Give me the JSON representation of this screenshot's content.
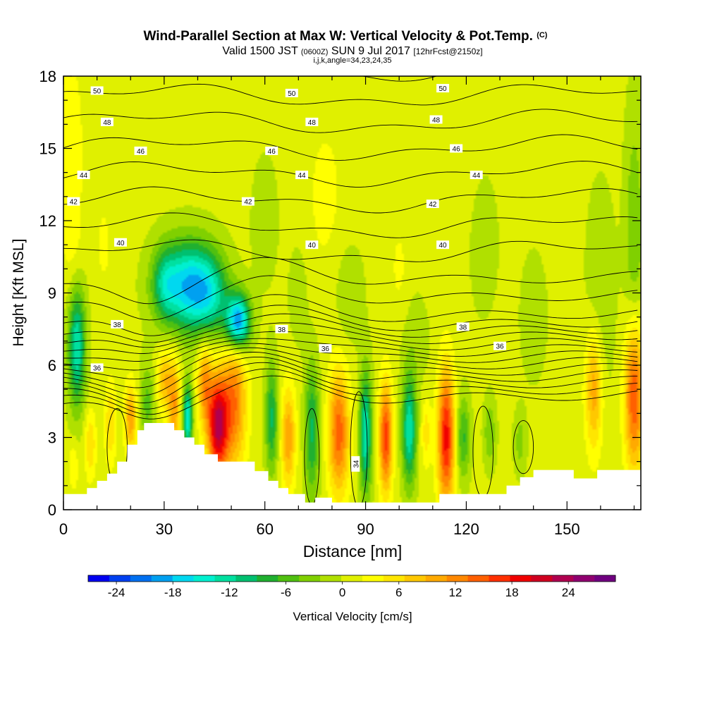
{
  "chart_data": {
    "type": "heatmap",
    "title": "Wind-Parallel Section at Max W: Vertical Velocity & Pot.Temp.",
    "title_mark": "(C)",
    "subtitle_parts": [
      "Valid 1500 JST",
      "(0600Z)",
      "SUN 9 Jul 2017",
      "[12hrFcst@2150z]"
    ],
    "subtitle2": "i,j,k,angle=34,23,24,35",
    "xlabel": "Distance [nm]",
    "ylabel": "Height [Kft MSL]",
    "xlim": [
      0,
      172
    ],
    "ylim": [
      0,
      18
    ],
    "x_ticks": [
      0,
      30,
      60,
      90,
      120,
      150
    ],
    "y_ticks": [
      0,
      3,
      6,
      9,
      12,
      15,
      18
    ],
    "grid": false,
    "colorbar": {
      "label": "Vertical Velocity [cm/s]",
      "ticks": [
        "-24",
        "-18",
        "-12",
        "-6",
        "0",
        "6",
        "12",
        "18",
        "24"
      ],
      "range": [
        -27,
        29
      ],
      "colors": [
        "#0000f0",
        "#0040f0",
        "#0070f0",
        "#00a0f0",
        "#00d8f0",
        "#00f0d0",
        "#00e0a0",
        "#00c070",
        "#20b030",
        "#50c010",
        "#80d000",
        "#b0e000",
        "#e0f000",
        "#ffff00",
        "#ffe600",
        "#ffc800",
        "#ffaa00",
        "#ff8800",
        "#ff6000",
        "#ff3000",
        "#f00000",
        "#d00020",
        "#b00050",
        "#900070",
        "#700080"
      ]
    },
    "pot_temp_labels": [
      {
        "text": "50",
        "x": 10,
        "y": 17.4
      },
      {
        "text": "50",
        "x": 68,
        "y": 17.3
      },
      {
        "text": "50",
        "x": 113,
        "y": 17.5
      },
      {
        "text": "48",
        "x": 13,
        "y": 16.1
      },
      {
        "text": "48",
        "x": 74,
        "y": 16.1
      },
      {
        "text": "48",
        "x": 111,
        "y": 16.2
      },
      {
        "text": "46",
        "x": 23,
        "y": 14.9
      },
      {
        "text": "46",
        "x": 62,
        "y": 14.9
      },
      {
        "text": "46",
        "x": 117,
        "y": 15.0
      },
      {
        "text": "44",
        "x": 6,
        "y": 13.9
      },
      {
        "text": "44",
        "x": 71,
        "y": 13.9
      },
      {
        "text": "44",
        "x": 123,
        "y": 13.9
      },
      {
        "text": "42",
        "x": 3,
        "y": 12.8
      },
      {
        "text": "42",
        "x": 55,
        "y": 12.8
      },
      {
        "text": "42",
        "x": 110,
        "y": 12.7
      },
      {
        "text": "40",
        "x": 17,
        "y": 11.1
      },
      {
        "text": "40",
        "x": 74,
        "y": 11.0
      },
      {
        "text": "40",
        "x": 113,
        "y": 11.0
      },
      {
        "text": "38",
        "x": 16,
        "y": 7.7
      },
      {
        "text": "38",
        "x": 65,
        "y": 7.5
      },
      {
        "text": "38",
        "x": 119,
        "y": 7.6
      },
      {
        "text": "36",
        "x": 10,
        "y": 5.9
      },
      {
        "text": "36",
        "x": 78,
        "y": 6.7
      },
      {
        "text": "36",
        "x": 130,
        "y": 6.8
      },
      {
        "text": "34",
        "x": 87,
        "y": 1.9
      }
    ],
    "terrain": [
      [
        0,
        0.65
      ],
      [
        7,
        0.65
      ],
      [
        7,
        0.9
      ],
      [
        10,
        0.9
      ],
      [
        10,
        1.2
      ],
      [
        13,
        1.2
      ],
      [
        13,
        1.5
      ],
      [
        16,
        1.5
      ],
      [
        16,
        2.0
      ],
      [
        19,
        2.0
      ],
      [
        19,
        2.7
      ],
      [
        22,
        2.7
      ],
      [
        22,
        3.3
      ],
      [
        24,
        3.3
      ],
      [
        24,
        3.6
      ],
      [
        33,
        3.6
      ],
      [
        33,
        3.3
      ],
      [
        36,
        3.3
      ],
      [
        36,
        3.0
      ],
      [
        39,
        3.0
      ],
      [
        39,
        2.7
      ],
      [
        42,
        2.7
      ],
      [
        42,
        2.3
      ],
      [
        46,
        2.3
      ],
      [
        46,
        2.0
      ],
      [
        57,
        2.0
      ],
      [
        57,
        1.6
      ],
      [
        61,
        1.6
      ],
      [
        61,
        1.2
      ],
      [
        64,
        1.2
      ],
      [
        64,
        0.9
      ],
      [
        67,
        0.9
      ],
      [
        67,
        0.65
      ],
      [
        72,
        0.65
      ],
      [
        72,
        0.3
      ],
      [
        75,
        0.3
      ],
      [
        75,
        0.5
      ],
      [
        80,
        0.5
      ],
      [
        80,
        0.3
      ],
      [
        112,
        0.3
      ],
      [
        112,
        0.65
      ],
      [
        132,
        0.65
      ],
      [
        132,
        1.0
      ],
      [
        136,
        1.0
      ],
      [
        136,
        1.35
      ],
      [
        140,
        1.35
      ],
      [
        140,
        1.65
      ],
      [
        152,
        1.65
      ],
      [
        152,
        1.3
      ],
      [
        159,
        1.3
      ],
      [
        159,
        1.65
      ],
      [
        172,
        1.65
      ]
    ],
    "w_features": [
      {
        "x": 4,
        "y": 6.8,
        "sx": 1.8,
        "sy": 1.8,
        "a": -14
      },
      {
        "x": 37,
        "y": 9.3,
        "sx": 6,
        "sy": 1.3,
        "a": -18
      },
      {
        "x": 44,
        "y": 8.8,
        "sx": 4,
        "sy": 1.2,
        "a": -8
      },
      {
        "x": 52,
        "y": 7.8,
        "sx": 2.5,
        "sy": 0.8,
        "a": -22
      },
      {
        "x": 30,
        "y": 9.4,
        "sx": 2.5,
        "sy": 1.0,
        "a": -6
      },
      {
        "x": 46,
        "y": 3.5,
        "sx": 2.2,
        "sy": 1.5,
        "a": 22
      },
      {
        "x": 51,
        "y": 4.5,
        "sx": 2.5,
        "sy": 2.0,
        "a": 12
      },
      {
        "x": 42,
        "y": 5.3,
        "sx": 1.5,
        "sy": 1.2,
        "a": 10
      },
      {
        "x": 37,
        "y": 3.8,
        "sx": 1.0,
        "sy": 1.0,
        "a": -16
      },
      {
        "x": 33,
        "y": 4.3,
        "sx": 1.3,
        "sy": 1.4,
        "a": 10
      },
      {
        "x": 30,
        "y": 5.4,
        "sx": 1.6,
        "sy": 0.9,
        "a": 8
      },
      {
        "x": 25,
        "y": 4.4,
        "sx": 1.6,
        "sy": 1.2,
        "a": -6
      },
      {
        "x": 20,
        "y": 3.8,
        "sx": 1.3,
        "sy": 1.0,
        "a": 10
      },
      {
        "x": 14,
        "y": 3.6,
        "sx": 1.2,
        "sy": 1.2,
        "a": 6
      },
      {
        "x": 8,
        "y": 2.7,
        "sx": 1.2,
        "sy": 1.0,
        "a": 6
      },
      {
        "x": 3,
        "y": 1.8,
        "sx": 1.0,
        "sy": 0.7,
        "a": 4
      },
      {
        "x": 62,
        "y": 3.8,
        "sx": 1.3,
        "sy": 1.6,
        "a": -10
      },
      {
        "x": 67,
        "y": 3.0,
        "sx": 1.5,
        "sy": 1.5,
        "a": 10
      },
      {
        "x": 74,
        "y": 3.3,
        "sx": 1.5,
        "sy": 2.0,
        "a": -10
      },
      {
        "x": 82,
        "y": 3.2,
        "sx": 2.2,
        "sy": 1.8,
        "a": 14
      },
      {
        "x": 90,
        "y": 3.2,
        "sx": 1.3,
        "sy": 1.8,
        "a": -14
      },
      {
        "x": 96,
        "y": 3.0,
        "sx": 1.4,
        "sy": 1.6,
        "a": 16
      },
      {
        "x": 103,
        "y": 3.3,
        "sx": 1.5,
        "sy": 1.6,
        "a": -14
      },
      {
        "x": 108,
        "y": 3.2,
        "sx": 1.0,
        "sy": 1.0,
        "a": 5
      },
      {
        "x": 114,
        "y": 3.0,
        "sx": 1.8,
        "sy": 2.0,
        "a": 18
      },
      {
        "x": 119,
        "y": 3.0,
        "sx": 1.5,
        "sy": 1.2,
        "a": -8
      },
      {
        "x": 127,
        "y": 3.2,
        "sx": 1.3,
        "sy": 1.0,
        "a": -5
      },
      {
        "x": 136,
        "y": 2.8,
        "sx": 1.3,
        "sy": 0.9,
        "a": -4
      },
      {
        "x": 158,
        "y": 5.0,
        "sx": 1.8,
        "sy": 1.8,
        "a": 10
      },
      {
        "x": 170,
        "y": 4.8,
        "sx": 2.0,
        "sy": 2.2,
        "a": 16
      },
      {
        "x": 2,
        "y": 15,
        "sx": 3,
        "sy": 3,
        "a": 3
      },
      {
        "x": 3,
        "y": 10.5,
        "sx": 2.0,
        "sy": 1.5,
        "a": 2
      },
      {
        "x": 12,
        "y": 11,
        "sx": 2.0,
        "sy": 1.5,
        "a": 2
      },
      {
        "x": 78,
        "y": 13,
        "sx": 5,
        "sy": 3,
        "a": 2
      },
      {
        "x": 115,
        "y": 14.5,
        "sx": 5,
        "sy": 3,
        "a": 1.5
      },
      {
        "x": 100,
        "y": 10,
        "sx": 2.0,
        "sy": 1.5,
        "a": 2
      },
      {
        "x": 160,
        "y": 9,
        "sx": 3,
        "sy": 3,
        "a": -3
      },
      {
        "x": 170,
        "y": 11,
        "sx": 2.0,
        "sy": 4,
        "a": -5
      },
      {
        "x": 85,
        "y": 9,
        "sx": 3,
        "sy": 1.5,
        "a": -3
      },
      {
        "x": 105,
        "y": 7,
        "sx": 3,
        "sy": 1.5,
        "a": -2
      },
      {
        "x": 140,
        "y": 8,
        "sx": 3,
        "sy": 2.0,
        "a": -2
      },
      {
        "x": 60,
        "y": 12,
        "sx": 3,
        "sy": 2.0,
        "a": -2
      },
      {
        "x": 125,
        "y": 11,
        "sx": 3,
        "sy": 2.0,
        "a": -2.5
      },
      {
        "x": 70,
        "y": 9,
        "sx": 2.0,
        "sy": 1.5,
        "a": -2.5
      }
    ]
  }
}
